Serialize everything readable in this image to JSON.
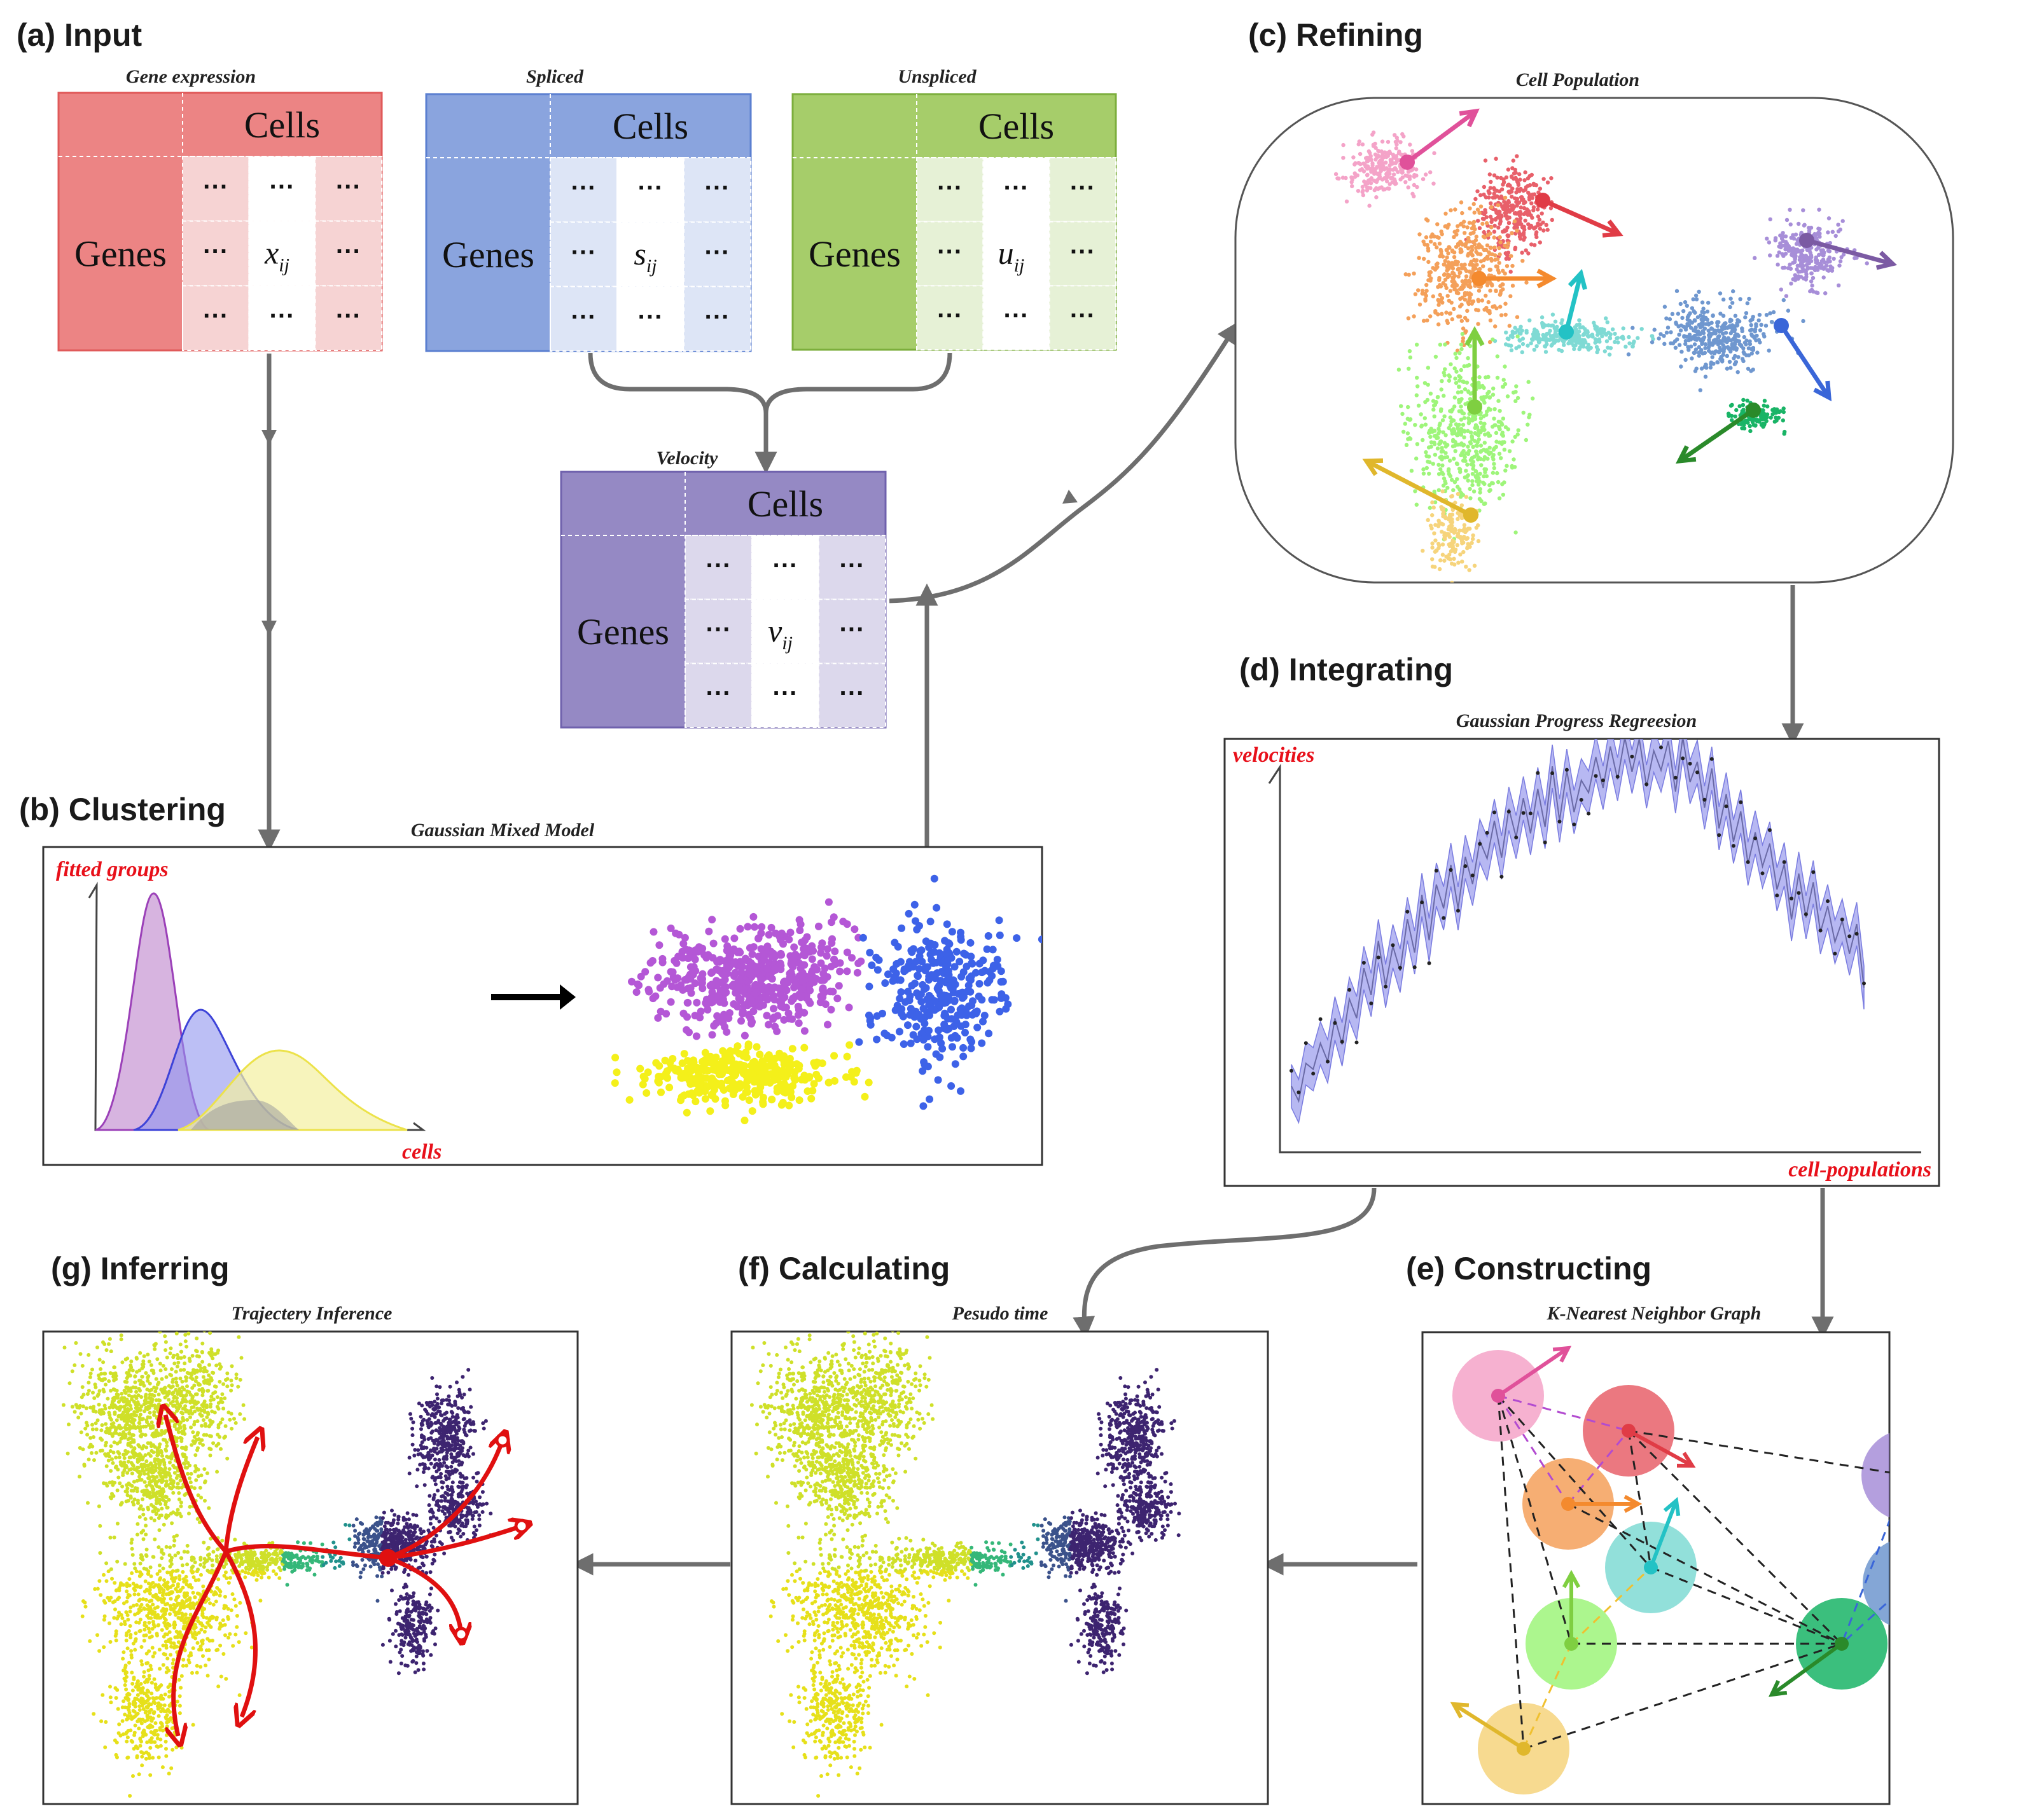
{
  "panels": {
    "a": {
      "label": "(a)  Input"
    },
    "b": {
      "label": "(b)  Clustering"
    },
    "c": {
      "label": "(c)  Refining"
    },
    "d": {
      "label": "(d)   Integrating"
    },
    "e": {
      "label": "(e)  Constructing"
    },
    "f": {
      "label": "(f) Calculating"
    },
    "g": {
      "label": "(g) Inferring"
    }
  },
  "matrices": {
    "gene_expression": {
      "title": "Gene expression",
      "cols_label": "Cells",
      "rows_label": "Genes",
      "dots": "···",
      "var": "x",
      "sub": "ij",
      "head_color": "#ec8484",
      "cell_color": "#f6d3d3",
      "border": "#e05a5a"
    },
    "spliced": {
      "title": "Spliced",
      "cols_label": "Cells",
      "rows_label": "Genes",
      "dots": "···",
      "var": "s",
      "sub": "ij",
      "head_color": "#8aa4de",
      "cell_color": "#dde5f6",
      "border": "#5b7fd0"
    },
    "unspliced": {
      "title": "Unspliced",
      "cols_label": "Cells",
      "rows_label": "Genes",
      "dots": "···",
      "var": "u",
      "sub": "ij",
      "head_color": "#a6cd6a",
      "cell_color": "#e6f1d6",
      "border": "#7cae3c"
    },
    "velocity": {
      "title": "Velocity",
      "cols_label": "Cells",
      "rows_label": "Genes",
      "dots": "···",
      "var": "v",
      "sub": "ij",
      "head_color": "#9589c4",
      "cell_color": "#dcd8ec",
      "border": "#6f61ad"
    }
  },
  "clustering": {
    "title": "Gaussian Mixed Model",
    "ylabel": "fitted groups",
    "xlabel": "cells",
    "colors": {
      "purple": "#b457d6",
      "blue": "#3d62e8",
      "yellow": "#f4f01a"
    }
  },
  "refining": {
    "title": "Cell Population"
  },
  "integrating": {
    "title": "Gaussian Progress Regreesion",
    "ylabel": "velocities",
    "xlabel": "cell-populations",
    "band_color": "#9fa0ee"
  },
  "constructing": {
    "title": "K-Nearest Neighbor Graph"
  },
  "calculating": {
    "title": "Pesudo time"
  },
  "inferring": {
    "title": "Trajectery Inference"
  },
  "cluster_colors": {
    "pink": "#f4a3c8",
    "red": "#e8606a",
    "orange": "#f4a05a",
    "cyan": "#7fdad4",
    "green": "#9ef57a",
    "yellow": "#f6d47c",
    "steel": "#6f97cf",
    "lavender": "#a78ed8",
    "emerald": "#19b466"
  }
}
